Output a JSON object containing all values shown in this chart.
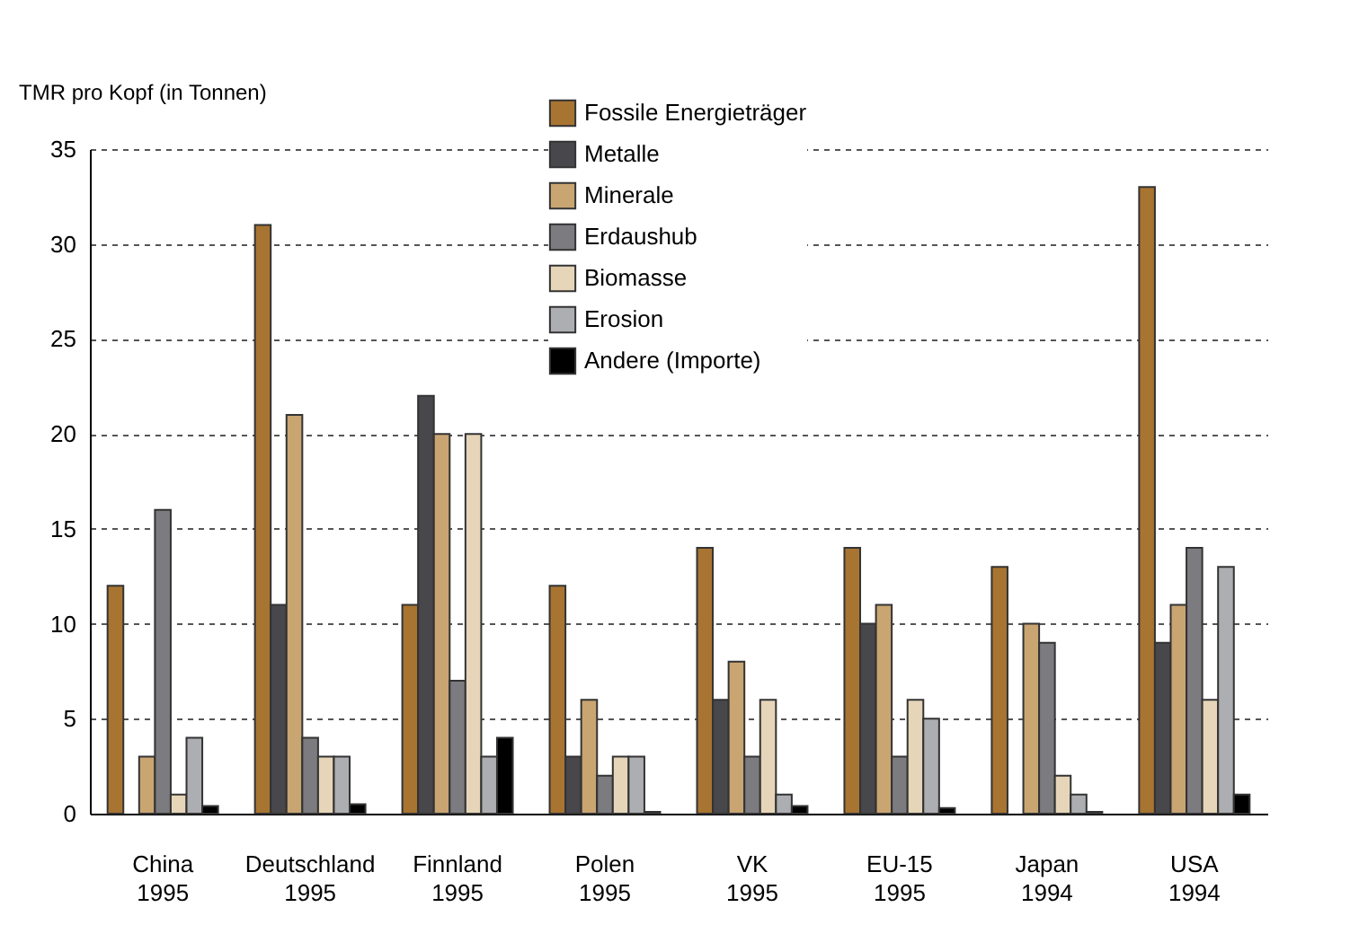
{
  "chart_data": {
    "type": "bar",
    "ylabel": "TMR pro Kopf (in Tonnen)",
    "categories": [
      "China 1995",
      "Deutschland 1995",
      "Finnland 1995",
      "Polen 1995",
      "VK 1995",
      "EU-15 1995",
      "Japan 1994",
      "USA 1994"
    ],
    "series": [
      {
        "name": "Fossile Energieträger",
        "color": "#a87431",
        "values": [
          12,
          31,
          11,
          12,
          14,
          14,
          13,
          33
        ]
      },
      {
        "name": "Metalle",
        "color": "#48474c",
        "values": [
          null,
          11,
          22,
          3,
          6,
          10,
          null,
          9
        ]
      },
      {
        "name": "Minerale",
        "color": "#c9a572",
        "values": [
          3,
          21,
          20,
          6,
          8,
          11,
          10,
          11
        ]
      },
      {
        "name": "Erdaushub",
        "color": "#7c7b80",
        "values": [
          16,
          4,
          7,
          2,
          3,
          3,
          9,
          14
        ]
      },
      {
        "name": "Biomasse",
        "color": "#e6d5b8",
        "values": [
          1,
          3,
          20,
          3,
          6,
          6,
          2,
          6
        ]
      },
      {
        "name": "Erosion",
        "color": "#adaeb2",
        "values": [
          4,
          3,
          3,
          3,
          1,
          5,
          1,
          13
        ]
      },
      {
        "name": "Andere (Importe)",
        "color": "#000000",
        "values": [
          0.4,
          0.5,
          4,
          0.1,
          0.4,
          0.3,
          0.1,
          1
        ]
      }
    ],
    "ylim": [
      0,
      35
    ],
    "yticks": [
      0,
      5,
      10,
      15,
      20,
      25,
      30,
      35
    ],
    "grid": "y",
    "legend": "top"
  }
}
